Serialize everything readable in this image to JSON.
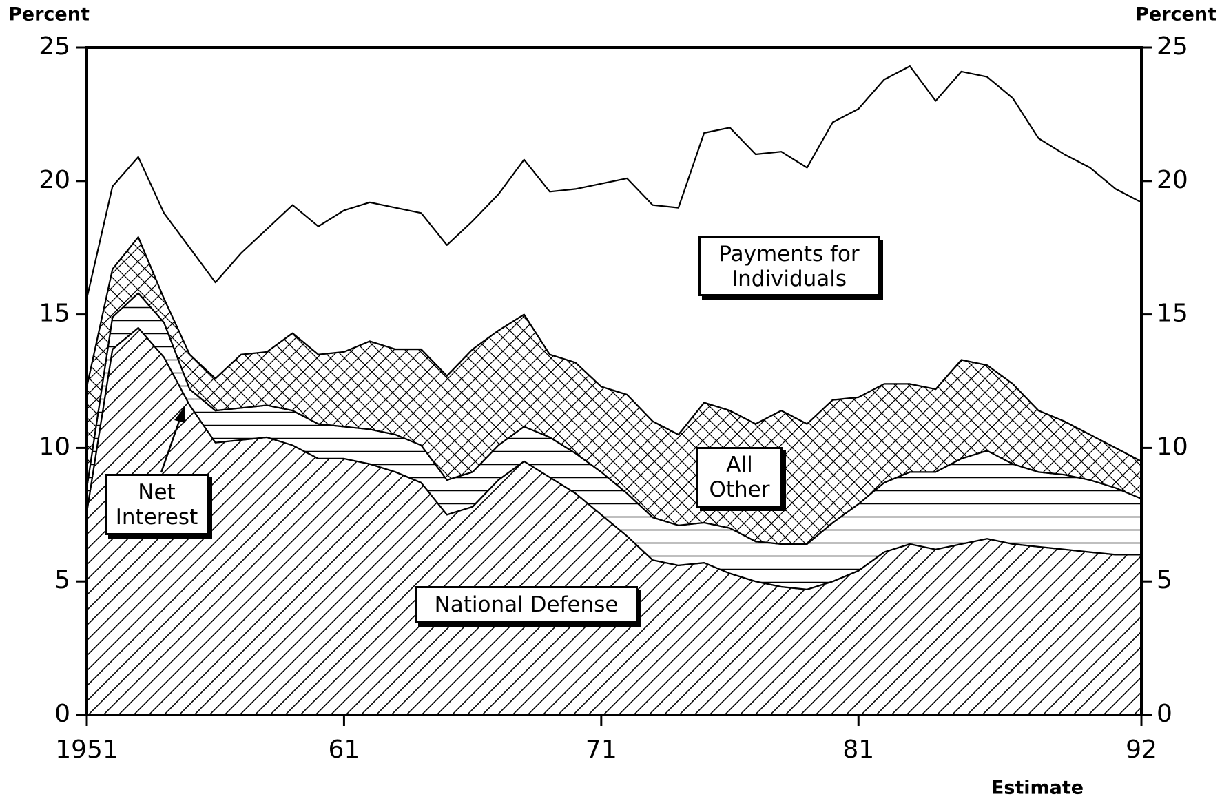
{
  "chart_data": {
    "type": "stacked_area",
    "x": [
      1951,
      1952,
      1953,
      1954,
      1955,
      1956,
      1957,
      1958,
      1959,
      1960,
      1961,
      1962,
      1963,
      1964,
      1965,
      1966,
      1967,
      1968,
      1969,
      1970,
      1971,
      1972,
      1973,
      1974,
      1975,
      1976,
      1977,
      1978,
      1979,
      1980,
      1981,
      1982,
      1983,
      1984,
      1985,
      1986,
      1987,
      1988,
      1989,
      1990,
      1991,
      1992
    ],
    "series": [
      {
        "name": "National Defense",
        "color": "#000000",
        "hatch": "diagonal",
        "values": [
          7.6,
          13.7,
          14.5,
          13.4,
          11.6,
          10.2,
          10.3,
          10.4,
          10.1,
          9.6,
          9.6,
          9.4,
          9.1,
          8.7,
          7.5,
          7.8,
          8.8,
          9.5,
          8.9,
          8.3,
          7.5,
          6.7,
          5.8,
          5.6,
          5.7,
          5.3,
          5.0,
          4.8,
          4.7,
          5.0,
          5.4,
          6.1,
          6.4,
          6.2,
          6.4,
          6.6,
          6.4,
          6.3,
          6.2,
          6.1,
          6.0,
          6.0
        ]
      },
      {
        "name": "Net Interest",
        "color": "#000000",
        "hatch": "horizontal",
        "values": [
          0.9,
          1.2,
          1.3,
          1.3,
          0.6,
          1.2,
          1.2,
          1.2,
          1.3,
          1.3,
          1.2,
          1.3,
          1.4,
          1.4,
          1.3,
          1.3,
          1.3,
          1.3,
          1.5,
          1.5,
          1.6,
          1.6,
          1.6,
          1.5,
          1.5,
          1.7,
          1.5,
          1.6,
          1.7,
          2.2,
          2.5,
          2.6,
          2.7,
          2.9,
          3.2,
          3.3,
          3.0,
          2.8,
          2.8,
          2.7,
          2.5,
          2.1
        ]
      },
      {
        "name": "All Other",
        "color": "#000000",
        "hatch": "crosshatch",
        "values": [
          3.8,
          1.8,
          2.1,
          0.9,
          1.3,
          1.2,
          2.0,
          2.0,
          2.9,
          2.6,
          2.8,
          3.3,
          3.2,
          3.6,
          3.9,
          4.6,
          4.3,
          4.2,
          3.1,
          3.4,
          3.2,
          3.7,
          3.6,
          3.4,
          4.5,
          4.4,
          4.4,
          5.0,
          4.5,
          4.6,
          4.0,
          3.7,
          3.3,
          3.1,
          3.7,
          3.2,
          3.0,
          2.3,
          2.0,
          1.7,
          1.5,
          1.4
        ]
      },
      {
        "name": "Payments for Individuals",
        "color": "#000000",
        "hatch": "none",
        "values": [
          3.3,
          3.1,
          3.0,
          3.2,
          4.0,
          3.6,
          3.8,
          4.6,
          4.8,
          4.8,
          5.3,
          5.2,
          5.3,
          5.1,
          4.9,
          4.8,
          5.1,
          5.8,
          6.1,
          6.5,
          7.6,
          8.1,
          8.1,
          8.5,
          10.1,
          10.6,
          10.1,
          9.7,
          9.6,
          10.4,
          10.8,
          11.4,
          11.9,
          10.8,
          10.8,
          10.8,
          10.7,
          10.2,
          10.0,
          10.0,
          9.7,
          9.7
        ]
      }
    ],
    "ylabel": "Percent",
    "y2label": "Percent",
    "xnote": "Estimate",
    "xlim": [
      1951,
      1992
    ],
    "xticks": [
      1951,
      {
        "value": 1961,
        "label": "61"
      },
      {
        "value": 1971,
        "label": "71"
      },
      {
        "value": 1981,
        "label": "81"
      },
      {
        "value": 1992,
        "label": "92"
      }
    ],
    "ylim": [
      0,
      25
    ],
    "yticks": [
      0,
      5,
      10,
      15,
      20,
      25
    ],
    "y2lim": [
      0,
      25
    ],
    "y2ticks": [
      0,
      5,
      10,
      15,
      20,
      25
    ]
  }
}
